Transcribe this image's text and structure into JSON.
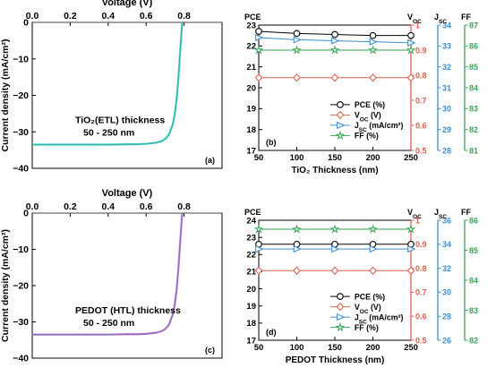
{
  "chart_data": [
    {
      "id": "a",
      "type": "line",
      "panel_label": "(a)",
      "xlabel": "Voltage (V)",
      "ylabel": "Current density (mA/cm²)",
      "xlim": [
        0,
        1.0
      ],
      "ylim": [
        -40,
        0
      ],
      "xticks": [
        "0.0",
        "0.2",
        "0.4",
        "0.6",
        "0.8"
      ],
      "yticks": [
        "0",
        "−10",
        "−20",
        "−30",
        "−40"
      ],
      "annotation": [
        "TiO₂(ETL) thickness",
        "50 - 250 nm"
      ],
      "curve_color": "#40d0c8",
      "series": [
        {
          "x": [
            0,
            0.1,
            0.2,
            0.3,
            0.4,
            0.5,
            0.55,
            0.6,
            0.65,
            0.68,
            0.7,
            0.72,
            0.74,
            0.75,
            0.76,
            0.77,
            0.78,
            0.79
          ],
          "values": [
            -33.5,
            -33.5,
            -33.5,
            -33.5,
            -33.5,
            -33.4,
            -33.4,
            -33.3,
            -33.0,
            -32.6,
            -32.0,
            -30.8,
            -28.0,
            -25.5,
            -21.5,
            -15.5,
            -7.5,
            0
          ]
        }
      ]
    },
    {
      "id": "b",
      "type": "line",
      "panel_label": "(b)",
      "xlabel": "TiO₂ Thickness (nm)",
      "x": [
        50,
        100,
        150,
        200,
        250
      ],
      "xticks": [
        "50",
        "100",
        "150",
        "200",
        "250"
      ],
      "axes": [
        {
          "title": "PCE",
          "lim": [
            17,
            23
          ],
          "ticks": [
            "17",
            "18",
            "19",
            "20",
            "21",
            "22",
            "23"
          ],
          "color": "#000000"
        },
        {
          "title": "V_OC",
          "lim": [
            0.5,
            1.0
          ],
          "ticks": [
            "0.5",
            "0.6",
            "0.7",
            "0.8",
            "0.9",
            "1"
          ],
          "color": "#e06050"
        },
        {
          "title": "J_SC",
          "lim": [
            28,
            34
          ],
          "ticks": [
            "28",
            "29",
            "30",
            "31",
            "32",
            "33",
            "34"
          ],
          "color": "#3b8fd6"
        },
        {
          "title": "FF",
          "lim": [
            81,
            87
          ],
          "ticks": [
            "81",
            "82",
            "83",
            "84",
            "85",
            "86",
            "87"
          ],
          "color": "#3aa655"
        }
      ],
      "series": [
        {
          "name": "PCE (%)",
          "axis": 0,
          "marker": "circle",
          "color": "#000000",
          "values": [
            22.7,
            22.6,
            22.55,
            22.5,
            22.5
          ]
        },
        {
          "name": "V_OC (V)",
          "axis": 1,
          "marker": "diamond",
          "color": "#e06050",
          "values": [
            0.79,
            0.79,
            0.79,
            0.79,
            0.79
          ]
        },
        {
          "name": "J_SC (mA/cm²)",
          "axis": 2,
          "marker": "triangle",
          "color": "#3b8fd6",
          "values": [
            33.4,
            33.3,
            33.25,
            33.2,
            33.15
          ]
        },
        {
          "name": "FF (%)",
          "axis": 3,
          "marker": "star",
          "color": "#3aa655",
          "values": [
            85.8,
            85.8,
            85.8,
            85.8,
            85.8
          ]
        }
      ],
      "legend": [
        {
          "label": "PCE (%)",
          "sub": "",
          "tail": ""
        },
        {
          "label": "V",
          "sub": "OC",
          "tail": " (V)"
        },
        {
          "label": "J",
          "sub": "SC",
          "tail": " (mA/cm²)"
        },
        {
          "label": "FF (%)",
          "sub": "",
          "tail": ""
        }
      ]
    },
    {
      "id": "c",
      "type": "line",
      "panel_label": "(c)",
      "xlabel": "Voltage (V)",
      "ylabel": "Current density (mA/cm²)",
      "xlim": [
        0,
        1.0
      ],
      "ylim": [
        -40,
        0
      ],
      "xticks": [
        "0.0",
        "0.2",
        "0.4",
        "0.6",
        "0.8"
      ],
      "yticks": [
        "0",
        "−10",
        "−20",
        "−30",
        "−40"
      ],
      "annotation": [
        "PEDOT (HTL) thickness",
        "50 - 250 nm"
      ],
      "curve_color": "#b07ad8",
      "series": [
        {
          "x": [
            0,
            0.1,
            0.2,
            0.3,
            0.4,
            0.5,
            0.55,
            0.6,
            0.65,
            0.68,
            0.7,
            0.72,
            0.74,
            0.75,
            0.76,
            0.77,
            0.78,
            0.79
          ],
          "values": [
            -33.5,
            -33.5,
            -33.5,
            -33.5,
            -33.5,
            -33.4,
            -33.4,
            -33.3,
            -33.0,
            -32.6,
            -32.0,
            -30.8,
            -28.0,
            -25.5,
            -21.5,
            -15.5,
            -7.5,
            0
          ]
        }
      ]
    },
    {
      "id": "d",
      "type": "line",
      "panel_label": "(d)",
      "xlabel": "PEDOT Thickness (nm)",
      "x": [
        50,
        100,
        150,
        200,
        250
      ],
      "xticks": [
        "50",
        "100",
        "150",
        "200",
        "250"
      ],
      "axes": [
        {
          "title": "PCE",
          "lim": [
            17,
            24
          ],
          "ticks": [
            "17",
            "18",
            "19",
            "20",
            "21",
            "22",
            "23",
            "24"
          ],
          "color": "#000000"
        },
        {
          "title": "V_OC",
          "lim": [
            0.5,
            1.0
          ],
          "ticks": [
            "0.5",
            "0.6",
            "0.7",
            "0.8",
            "0.9",
            "1"
          ],
          "color": "#e06050"
        },
        {
          "title": "J_SC",
          "lim": [
            26,
            36
          ],
          "ticks": [
            "26",
            "28",
            "30",
            "32",
            "34",
            "36"
          ],
          "color": "#3b8fd6"
        },
        {
          "title": "FF",
          "lim": [
            82,
            86
          ],
          "ticks": [
            "82",
            "83",
            "84",
            "85",
            "86"
          ],
          "color": "#3aa655"
        }
      ],
      "series": [
        {
          "name": "PCE (%)",
          "axis": 0,
          "marker": "circle",
          "color": "#000000",
          "values": [
            22.6,
            22.6,
            22.6,
            22.6,
            22.6
          ]
        },
        {
          "name": "V_OC (V)",
          "axis": 1,
          "marker": "diamond",
          "color": "#e06050",
          "values": [
            0.79,
            0.79,
            0.79,
            0.79,
            0.79
          ]
        },
        {
          "name": "J_SC (mA/cm²)",
          "axis": 2,
          "marker": "triangle",
          "color": "#3b8fd6",
          "values": [
            33.6,
            33.6,
            33.6,
            33.6,
            33.6
          ]
        },
        {
          "name": "FF (%)",
          "axis": 3,
          "marker": "star",
          "color": "#3aa655",
          "values": [
            85.7,
            85.7,
            85.7,
            85.7,
            85.7
          ]
        }
      ],
      "legend": [
        {
          "label": "PCE (%)",
          "sub": "",
          "tail": ""
        },
        {
          "label": "V",
          "sub": "OC",
          "tail": " (V)"
        },
        {
          "label": "J",
          "sub": "SC",
          "tail": " (mA/cm²)"
        },
        {
          "label": "FF (%)",
          "sub": "",
          "tail": ""
        }
      ]
    }
  ]
}
